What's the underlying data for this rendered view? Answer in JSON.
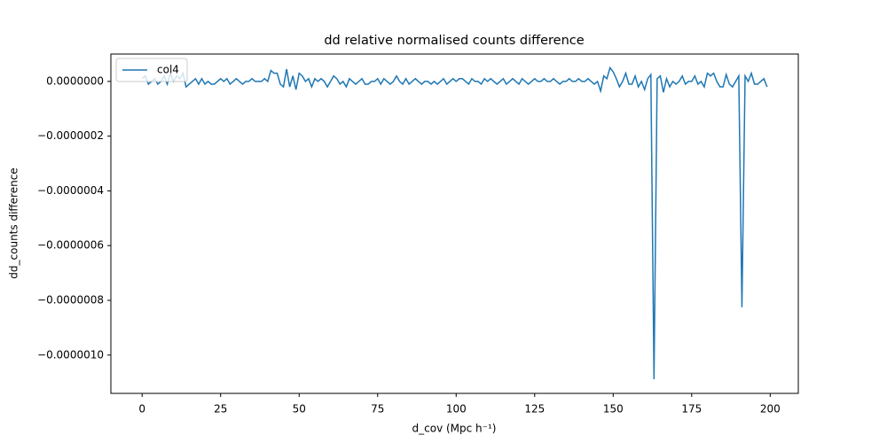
{
  "chart_data": {
    "type": "line",
    "title": "dd relative normalised counts difference",
    "xlabel": "d_cov (Mpc h⁻¹)",
    "ylabel": "dd_counts difference",
    "x": [
      0,
      1,
      2,
      3,
      4,
      5,
      6,
      7,
      8,
      9,
      10,
      11,
      12,
      13,
      14,
      15,
      16,
      17,
      18,
      19,
      20,
      21,
      22,
      23,
      24,
      25,
      26,
      27,
      28,
      29,
      30,
      31,
      32,
      33,
      34,
      35,
      36,
      37,
      38,
      39,
      40,
      41,
      42,
      43,
      44,
      45,
      46,
      47,
      48,
      49,
      50,
      51,
      52,
      53,
      54,
      55,
      56,
      57,
      58,
      59,
      60,
      61,
      62,
      63,
      64,
      65,
      66,
      67,
      68,
      69,
      70,
      71,
      72,
      73,
      74,
      75,
      76,
      77,
      78,
      79,
      80,
      81,
      82,
      83,
      84,
      85,
      86,
      87,
      88,
      89,
      90,
      91,
      92,
      93,
      94,
      95,
      96,
      97,
      98,
      99,
      100,
      101,
      102,
      103,
      104,
      105,
      106,
      107,
      108,
      109,
      110,
      111,
      112,
      113,
      114,
      115,
      116,
      117,
      118,
      119,
      120,
      121,
      122,
      123,
      124,
      125,
      126,
      127,
      128,
      129,
      130,
      131,
      132,
      133,
      134,
      135,
      136,
      137,
      138,
      139,
      140,
      141,
      142,
      143,
      144,
      145,
      146,
      147,
      148,
      149,
      150,
      151,
      152,
      153,
      154,
      155,
      156,
      157,
      158,
      159,
      160,
      161,
      162,
      163,
      164,
      165,
      166,
      167,
      168,
      169,
      170,
      171,
      172,
      173,
      174,
      175,
      176,
      177,
      178,
      179,
      180,
      181,
      182,
      183,
      184,
      185,
      186,
      187,
      188,
      189,
      190,
      191,
      192,
      193,
      194,
      195,
      196,
      197,
      198,
      199
    ],
    "series": [
      {
        "name": "col4",
        "color": "#1f77b4",
        "values": [
          1e-08,
          2e-08,
          -1e-08,
          0,
          1e-08,
          -1e-08,
          0,
          2e-08,
          -1e-08,
          3e-08,
          0,
          2e-08,
          1e-08,
          3e-08,
          -2e-08,
          -1e-08,
          0,
          1e-08,
          -1e-08,
          1e-08,
          -1e-08,
          0,
          -1e-08,
          -1e-08,
          0,
          1e-08,
          0,
          1e-08,
          -1e-08,
          0,
          1e-08,
          0,
          -1e-08,
          0,
          0,
          1e-08,
          0,
          0,
          0,
          1e-08,
          0,
          4e-08,
          3e-08,
          3e-08,
          -1e-08,
          -2e-08,
          4.5e-08,
          -2e-08,
          2e-08,
          -3e-08,
          3e-08,
          2e-08,
          0,
          1e-08,
          -2e-08,
          1e-08,
          0,
          1e-08,
          0,
          -2e-08,
          0,
          2e-08,
          1e-08,
          -1e-08,
          0,
          -2e-08,
          1e-08,
          0,
          -1e-08,
          0,
          1e-08,
          -1e-08,
          -1e-08,
          0,
          0,
          1e-08,
          -1e-08,
          1e-08,
          0,
          -1e-08,
          0,
          2e-08,
          0,
          -1e-08,
          1e-08,
          -1e-08,
          0,
          1e-08,
          0,
          -1e-08,
          0,
          0,
          -1e-08,
          0,
          -1e-08,
          0,
          1e-08,
          -1e-08,
          0,
          1e-08,
          0,
          1e-08,
          1e-08,
          0,
          -1e-08,
          1e-08,
          0,
          0,
          -1e-08,
          1e-08,
          0,
          1e-08,
          0,
          -1e-08,
          0,
          1e-08,
          -1e-08,
          0,
          1e-08,
          0,
          -1e-08,
          1e-08,
          0,
          -1e-08,
          0,
          1e-08,
          0,
          0,
          1e-08,
          0,
          0,
          1e-08,
          0,
          -1e-08,
          0,
          0,
          1e-08,
          0,
          0,
          1e-08,
          0,
          0,
          1e-08,
          0,
          -1e-08,
          0,
          -3.5e-08,
          2e-08,
          1e-08,
          5e-08,
          3.5e-08,
          1e-08,
          -2e-08,
          0,
          3e-08,
          -1e-08,
          -1e-08,
          2e-08,
          -2e-08,
          0,
          -3e-08,
          1e-08,
          2.5e-08,
          -1.088e-06,
          1e-08,
          2e-08,
          -4e-08,
          1e-08,
          -2e-08,
          0,
          -1e-08,
          0,
          2e-08,
          -1e-08,
          0,
          0,
          2e-08,
          -1e-08,
          0,
          -2e-08,
          3e-08,
          2e-08,
          3e-08,
          0,
          -2e-08,
          -2e-08,
          2.5e-08,
          -1e-08,
          -2e-08,
          0,
          2e-08,
          -8.25e-07,
          2e-08,
          0,
          3e-08,
          -1e-08,
          -1e-08,
          0,
          1e-08,
          -2e-08
        ]
      }
    ],
    "xlim": [
      -9.95,
      208.95
    ],
    "xticks": [
      0,
      25,
      50,
      75,
      100,
      125,
      150,
      175,
      200
    ],
    "ylim": [
      -1.14e-06,
      1e-07
    ],
    "yticks": [
      {
        "value": 0,
        "label": "0.0000000"
      },
      {
        "value": -2e-07,
        "label": "−0.0000002"
      },
      {
        "value": -4e-07,
        "label": "−0.0000004"
      },
      {
        "value": -6e-07,
        "label": "−0.0000006"
      },
      {
        "value": -8e-07,
        "label": "−0.0000008"
      },
      {
        "value": -1e-06,
        "label": "−0.0000010"
      }
    ],
    "legend": "upper left"
  }
}
